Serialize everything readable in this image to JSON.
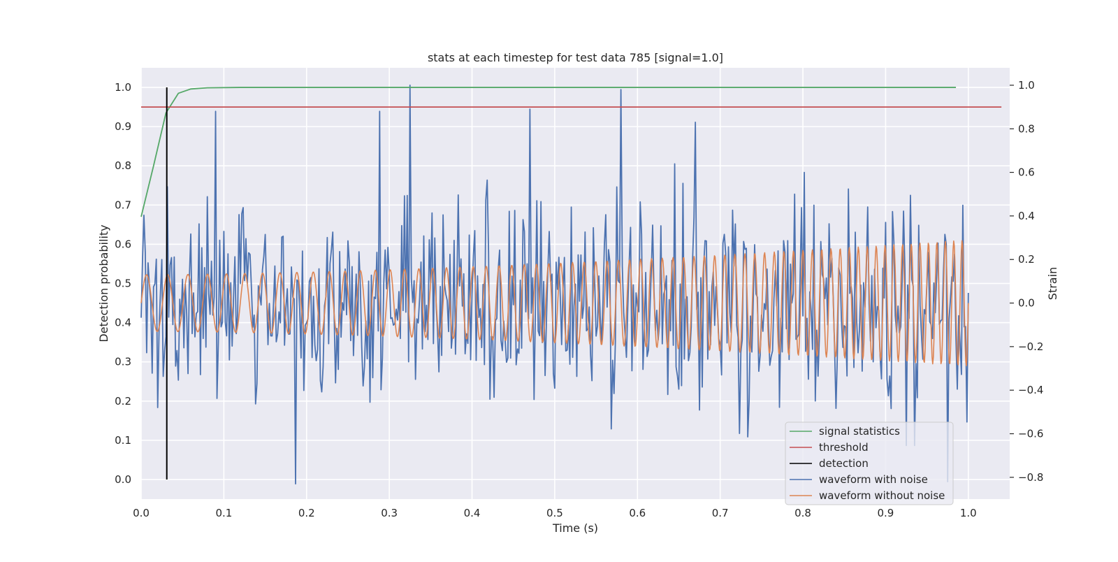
{
  "chart_data": {
    "type": "line",
    "title": "stats at each timestep for test data 785 [signal=1.0]",
    "xlabel": "Time (s)",
    "ylabel": "Detection probability",
    "y2label": "Strain",
    "xlim": [
      0.0,
      1.05
    ],
    "ylim": [
      -0.05,
      1.05
    ],
    "y2lim": [
      -0.9,
      1.08
    ],
    "xticks": [
      "0.0",
      "0.1",
      "0.2",
      "0.3",
      "0.4",
      "0.5",
      "0.6",
      "0.7",
      "0.8",
      "0.9",
      "1.0"
    ],
    "yticks": [
      "0.0",
      "0.1",
      "0.2",
      "0.3",
      "0.4",
      "0.5",
      "0.6",
      "0.7",
      "0.8",
      "0.9",
      "1.0"
    ],
    "y2ticks": [
      "−0.8",
      "−0.6",
      "−0.4",
      "−0.2",
      "0.0",
      "0.2",
      "0.4",
      "0.6",
      "0.8",
      "1.0"
    ],
    "y2tick_values": [
      -0.8,
      -0.6,
      -0.4,
      -0.2,
      0.0,
      0.2,
      0.4,
      0.6,
      0.8,
      1.0
    ],
    "grid": true,
    "legend_position": "lower-right",
    "series": [
      {
        "name": "signal statistics",
        "axis": "left",
        "color": "#55a868",
        "x": [
          0.0,
          0.015,
          0.03,
          0.045,
          0.06,
          0.08,
          0.12,
          0.2,
          0.4,
          0.6,
          0.8,
          0.985
        ],
        "values": [
          0.67,
          0.8,
          0.935,
          0.985,
          0.996,
          0.999,
          1.0,
          1.0,
          1.0,
          1.0,
          1.0,
          1.0
        ]
      },
      {
        "name": "threshold",
        "axis": "left",
        "color": "#c44e52",
        "x": [
          0.0,
          1.04
        ],
        "values": [
          0.95,
          0.95
        ]
      },
      {
        "name": "detection",
        "axis": "left",
        "color": "#000000",
        "x": [
          0.031,
          0.031
        ],
        "values": [
          0.0,
          1.0
        ]
      },
      {
        "name": "waveform with noise",
        "axis": "right",
        "color": "#4c72b0",
        "samples": 600,
        "x_start": 0.0,
        "x_end": 1.0,
        "y_min": -0.83,
        "y_max": 1.0,
        "peaks": [
          {
            "x": 0.09,
            "value": 0.88
          },
          {
            "x": 0.187,
            "value": -0.83
          },
          {
            "x": 0.288,
            "value": 0.88
          },
          {
            "x": 0.325,
            "value": 1.0
          },
          {
            "x": 0.47,
            "value": 0.89
          },
          {
            "x": 0.58,
            "value": 0.98
          },
          {
            "x": 0.67,
            "value": 0.83
          },
          {
            "x": 0.975,
            "value": -0.82
          }
        ]
      },
      {
        "name": "waveform without noise",
        "axis": "right",
        "color": "#dd8452",
        "samples": 1300,
        "x_start": 0.0,
        "x_end": 1.0,
        "amplitude_start": 0.13,
        "amplitude_end": 0.29,
        "frequency_start_hz": 38,
        "frequency_end_hz": 100
      }
    ]
  }
}
